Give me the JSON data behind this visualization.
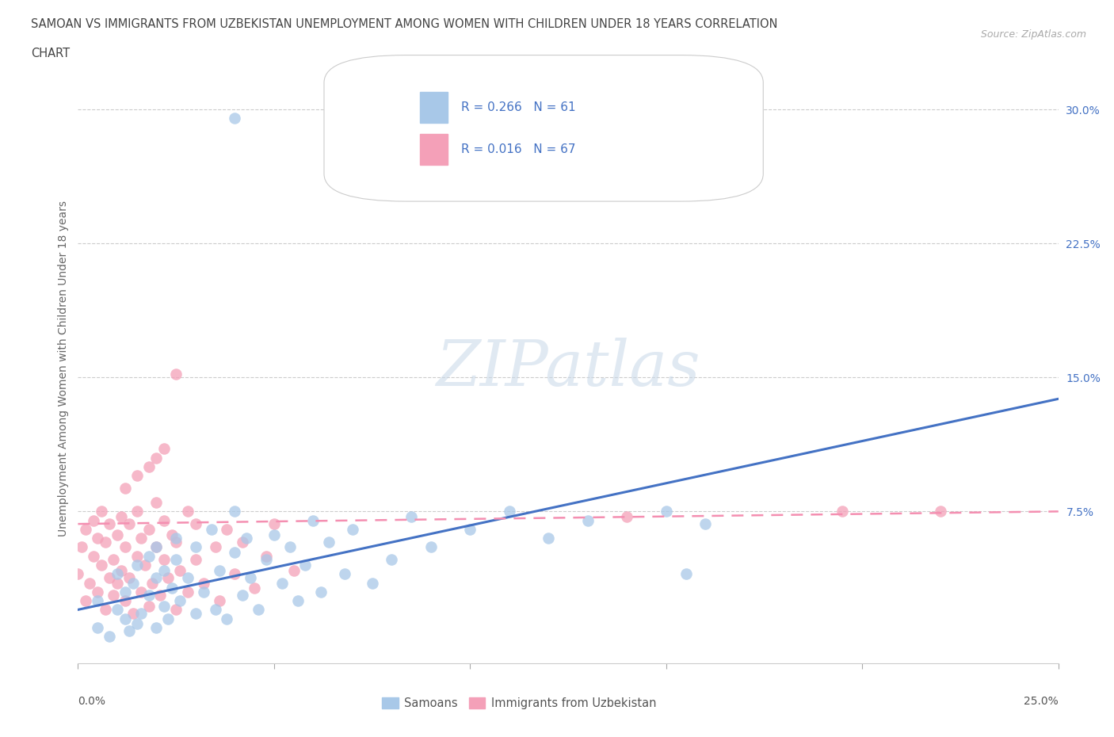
{
  "title_line1": "SAMOAN VS IMMIGRANTS FROM UZBEKISTAN UNEMPLOYMENT AMONG WOMEN WITH CHILDREN UNDER 18 YEARS CORRELATION",
  "title_line2": "CHART",
  "source": "Source: ZipAtlas.com",
  "ylabel": "Unemployment Among Women with Children Under 18 years",
  "legend_R_samoan": "0.266",
  "legend_N_samoan": "61",
  "legend_R_uzbek": "0.016",
  "legend_N_uzbek": "67",
  "color_samoan": "#a8c8e8",
  "color_uzbek": "#f4a0b8",
  "color_samoan_line": "#4472C4",
  "color_uzbek_line": "#f48fb1",
  "xlim": [
    0.0,
    0.25
  ],
  "ylim": [
    -0.01,
    0.32
  ],
  "samoan_x": [
    0.005,
    0.005,
    0.008,
    0.01,
    0.01,
    0.012,
    0.012,
    0.013,
    0.014,
    0.015,
    0.015,
    0.016,
    0.018,
    0.018,
    0.02,
    0.02,
    0.02,
    0.022,
    0.022,
    0.023,
    0.024,
    0.025,
    0.025,
    0.026,
    0.028,
    0.03,
    0.03,
    0.032,
    0.034,
    0.035,
    0.036,
    0.038,
    0.04,
    0.04,
    0.042,
    0.043,
    0.044,
    0.046,
    0.048,
    0.05,
    0.052,
    0.054,
    0.056,
    0.058,
    0.06,
    0.062,
    0.064,
    0.068,
    0.07,
    0.075,
    0.08,
    0.085,
    0.09,
    0.1,
    0.11,
    0.12,
    0.13,
    0.15,
    0.155,
    0.16,
    0.04
  ],
  "samoan_y": [
    0.01,
    0.025,
    0.005,
    0.02,
    0.04,
    0.015,
    0.03,
    0.008,
    0.035,
    0.012,
    0.045,
    0.018,
    0.028,
    0.05,
    0.01,
    0.038,
    0.055,
    0.022,
    0.042,
    0.015,
    0.032,
    0.048,
    0.06,
    0.025,
    0.038,
    0.018,
    0.055,
    0.03,
    0.065,
    0.02,
    0.042,
    0.015,
    0.052,
    0.075,
    0.028,
    0.06,
    0.038,
    0.02,
    0.048,
    0.062,
    0.035,
    0.055,
    0.025,
    0.045,
    0.07,
    0.03,
    0.058,
    0.04,
    0.065,
    0.035,
    0.048,
    0.072,
    0.055,
    0.065,
    0.075,
    0.06,
    0.07,
    0.075,
    0.04,
    0.068,
    0.295
  ],
  "uzbek_x": [
    0.0,
    0.001,
    0.002,
    0.002,
    0.003,
    0.004,
    0.004,
    0.005,
    0.005,
    0.006,
    0.006,
    0.007,
    0.007,
    0.008,
    0.008,
    0.009,
    0.009,
    0.01,
    0.01,
    0.011,
    0.011,
    0.012,
    0.012,
    0.013,
    0.013,
    0.014,
    0.015,
    0.015,
    0.016,
    0.016,
    0.017,
    0.018,
    0.018,
    0.019,
    0.02,
    0.02,
    0.021,
    0.022,
    0.022,
    0.023,
    0.024,
    0.025,
    0.025,
    0.026,
    0.028,
    0.028,
    0.03,
    0.03,
    0.032,
    0.035,
    0.036,
    0.038,
    0.04,
    0.042,
    0.045,
    0.048,
    0.05,
    0.055,
    0.012,
    0.015,
    0.018,
    0.02,
    0.022,
    0.025,
    0.14,
    0.195,
    0.22
  ],
  "uzbek_y": [
    0.04,
    0.055,
    0.025,
    0.065,
    0.035,
    0.05,
    0.07,
    0.03,
    0.06,
    0.045,
    0.075,
    0.02,
    0.058,
    0.038,
    0.068,
    0.028,
    0.048,
    0.035,
    0.062,
    0.042,
    0.072,
    0.025,
    0.055,
    0.038,
    0.068,
    0.018,
    0.05,
    0.075,
    0.03,
    0.06,
    0.045,
    0.022,
    0.065,
    0.035,
    0.055,
    0.08,
    0.028,
    0.048,
    0.07,
    0.038,
    0.062,
    0.02,
    0.058,
    0.042,
    0.075,
    0.03,
    0.048,
    0.068,
    0.035,
    0.055,
    0.025,
    0.065,
    0.04,
    0.058,
    0.032,
    0.05,
    0.068,
    0.042,
    0.088,
    0.095,
    0.1,
    0.105,
    0.11,
    0.152,
    0.072,
    0.075,
    0.075
  ],
  "samoan_line_x": [
    0.0,
    0.25
  ],
  "samoan_line_y": [
    0.02,
    0.138
  ],
  "uzbek_line_x": [
    0.0,
    0.25
  ],
  "uzbek_line_y": [
    0.068,
    0.075
  ]
}
